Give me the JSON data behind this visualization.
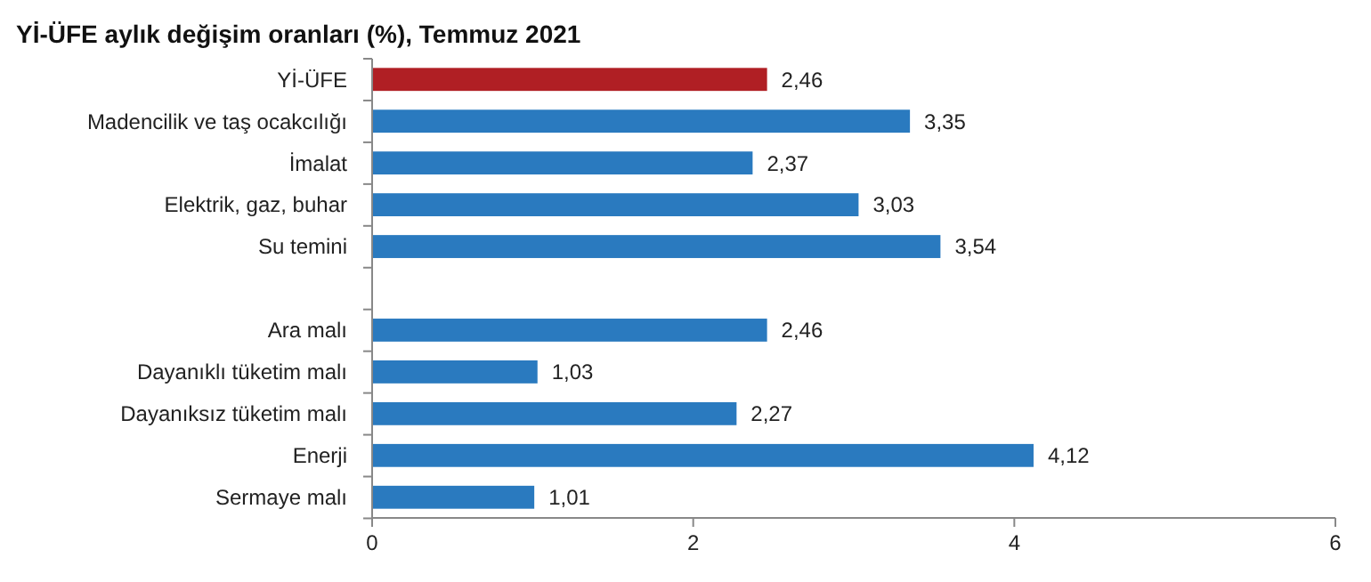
{
  "chart_data": {
    "type": "bar",
    "orientation": "horizontal",
    "title": "Yİ-ÜFE aylık değişim oranları (%), Temmuz 2021",
    "categories": [
      "Yİ-ÜFE",
      "Madencilik ve taş ocakcılığı",
      "İmalat",
      "Elektrik, gaz, buhar",
      "Su temini",
      null,
      "Ara malı",
      "Dayanıklı tüketim malı",
      "Dayanıksız tüketim malı",
      "Enerji",
      "Sermaye malı"
    ],
    "values": [
      2.46,
      3.35,
      2.37,
      3.03,
      3.54,
      null,
      2.46,
      1.03,
      2.27,
      4.12,
      1.01
    ],
    "colors": [
      "#b01f24",
      "#2a7abf",
      "#2a7abf",
      "#2a7abf",
      "#2a7abf",
      null,
      "#2a7abf",
      "#2a7abf",
      "#2a7abf",
      "#2a7abf",
      "#2a7abf"
    ],
    "value_labels": [
      "2,46",
      "3,35",
      "2,37",
      "3,03",
      "3,54",
      null,
      "2,46",
      "1,03",
      "2,27",
      "4,12",
      "1,01"
    ],
    "xlim": [
      0,
      6
    ],
    "xticks": [
      0,
      2,
      4,
      6
    ]
  }
}
